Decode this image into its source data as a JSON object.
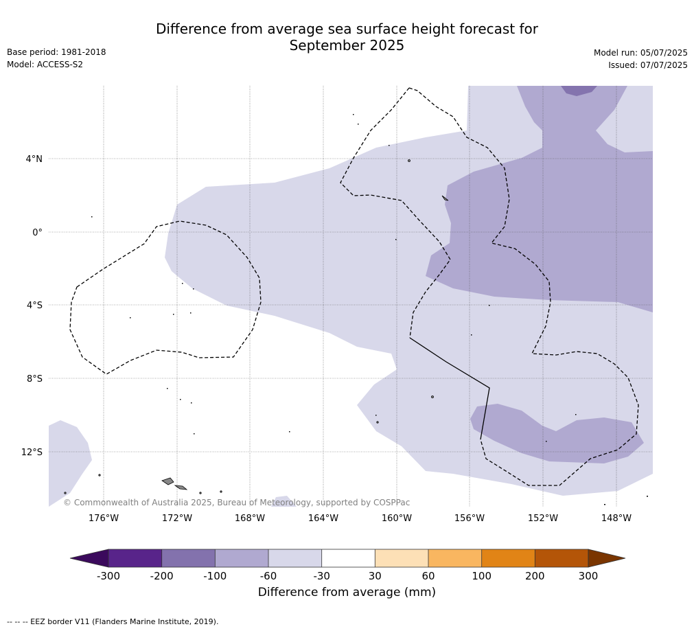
{
  "header": {
    "title_line1": "Difference from average sea surface height forecast for",
    "title_line2": "September 2025",
    "base_period": "Base period: 1981-2018",
    "model": "Model: ACCESS-S2",
    "model_run": "Model run: 05/07/2025",
    "issued": "Issued: 07/07/2025"
  },
  "map": {
    "copyright": "© Commonwealth of Australia 2025, Bureau of Meteorology, supported by COSPPac",
    "lat_labels": [
      "4°N",
      "0°",
      "4°S",
      "8°S",
      "12°S"
    ],
    "lon_labels": [
      "176°W",
      "172°W",
      "168°W",
      "164°W",
      "160°W",
      "156°W",
      "152°W",
      "148°W"
    ],
    "shading_colors": {
      "-60_to_-30": "#d8d8ea",
      "-100_to_-60": "#b0a9d0",
      "-200_to_-100": "#8474ae"
    }
  },
  "colorbar": {
    "label": "Difference from average (mm)",
    "ticks": [
      "-300",
      "-200",
      "-100",
      "-60",
      "-30",
      "30",
      "60",
      "100",
      "200",
      "300"
    ],
    "colors": [
      "#3b0a5c",
      "#58248a",
      "#8372ad",
      "#b0a9d0",
      "#d8d8ea",
      "#ffffff",
      "#fde0b6",
      "#f9b660",
      "#e18416",
      "#b45508",
      "#7a3500"
    ]
  },
  "footnote": "--  --  -- EEZ border V11 (Flanders Marine Institute, 2019)."
}
